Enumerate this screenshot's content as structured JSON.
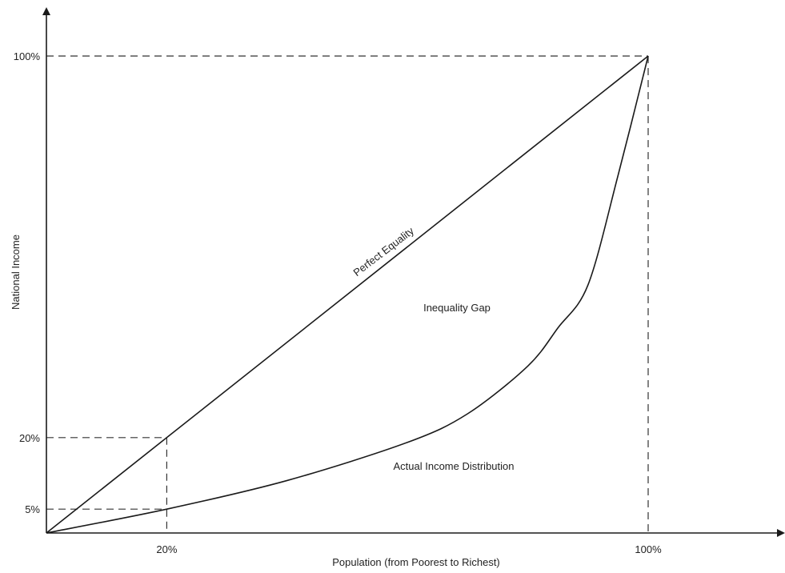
{
  "chart_data": {
    "type": "line",
    "title": "",
    "xlabel": "Population (from Poorest to Richest)",
    "ylabel": "National Income",
    "xlim": [
      0,
      100
    ],
    "ylim": [
      0,
      100
    ],
    "grid": false,
    "x_ticks": [
      {
        "value": 20,
        "label": "20%"
      },
      {
        "value": 100,
        "label": "100%"
      }
    ],
    "y_ticks": [
      {
        "value": 5,
        "label": "5%"
      },
      {
        "value": 20,
        "label": "20%"
      },
      {
        "value": 100,
        "label": "100%"
      }
    ],
    "series": [
      {
        "name": "Perfect Equality",
        "x": [
          0,
          20,
          100
        ],
        "y": [
          0,
          20,
          100
        ]
      },
      {
        "name": "Actual Income Distribution",
        "x": [
          0,
          20,
          40,
          60,
          70,
          80,
          85,
          90,
          95,
          100
        ],
        "y": [
          0,
          5,
          11,
          19,
          25,
          35,
          43,
          52,
          75,
          100
        ]
      }
    ],
    "annotations": [
      "Inequality Gap"
    ]
  }
}
